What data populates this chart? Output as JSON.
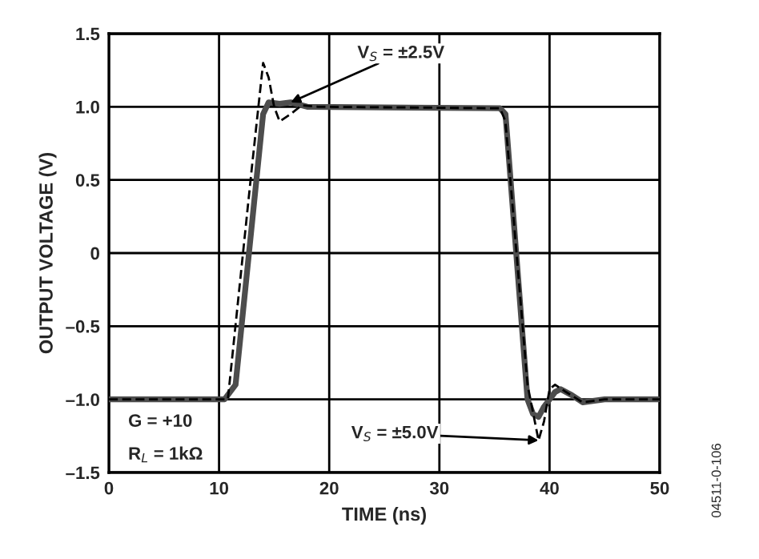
{
  "chart_data": {
    "type": "line",
    "xlabel": "TIME (ns)",
    "ylabel": "OUTPUT VOLTAGE (V)",
    "xlim": [
      0,
      50
    ],
    "xticks": [
      0,
      10,
      20,
      30,
      40,
      50
    ],
    "ylim": [
      -1.5,
      1.5
    ],
    "yticks": [
      {
        "value": -1.5,
        "label": "–1.5"
      },
      {
        "value": -1.0,
        "label": "–1.0"
      },
      {
        "value": -0.5,
        "label": "–0.5"
      },
      0,
      {
        "value": 0.5,
        "label": "0.5"
      },
      {
        "value": 1.0,
        "label": "1.0"
      },
      {
        "value": 1.5,
        "label": "1.5"
      }
    ],
    "grid": true,
    "marker": "none",
    "series": [
      {
        "color": "#4d4d4d",
        "line_style": "solid",
        "x": [
          0,
          10.5,
          11.5,
          14,
          14.5,
          15.5,
          16.5,
          18,
          35.5,
          36,
          38,
          38.5,
          39,
          39.5,
          40.5,
          41,
          42,
          43,
          45,
          50
        ],
        "values": [
          -1.0,
          -1.0,
          -0.9,
          0.95,
          1.03,
          1.02,
          1.03,
          1.0,
          0.99,
          0.95,
          -1.0,
          -1.1,
          -1.12,
          -1.05,
          -0.95,
          -0.93,
          -0.97,
          -1.02,
          -1.0,
          -1.0
        ]
      },
      {
        "color": "#000000",
        "line_style": "dashed",
        "x": [
          0,
          10.8,
          13,
          14,
          14.5,
          15,
          15.5,
          16.5,
          17.5,
          19,
          35.5,
          36,
          38,
          39,
          39.5,
          40,
          40.5,
          41.5,
          43,
          45,
          50
        ],
        "values": [
          -1.0,
          -1.0,
          0.6,
          1.3,
          1.2,
          1.0,
          0.9,
          0.95,
          1.01,
          1.0,
          0.99,
          0.9,
          -0.9,
          -1.28,
          -1.15,
          -0.93,
          -0.9,
          -0.95,
          -1.02,
          -1.0,
          -1.0
        ]
      }
    ],
    "annotations": [
      {
        "text": "V$_{S}$ = ±2.5V",
        "x": 16.5,
        "y": 1.03
      },
      {
        "text": "V$_{S}$ = ±5.0V",
        "x": 39,
        "y": -1.28
      },
      "G = +10",
      "R$_{L}$ = 1kΩ",
      "04511-0-106"
    ]
  }
}
